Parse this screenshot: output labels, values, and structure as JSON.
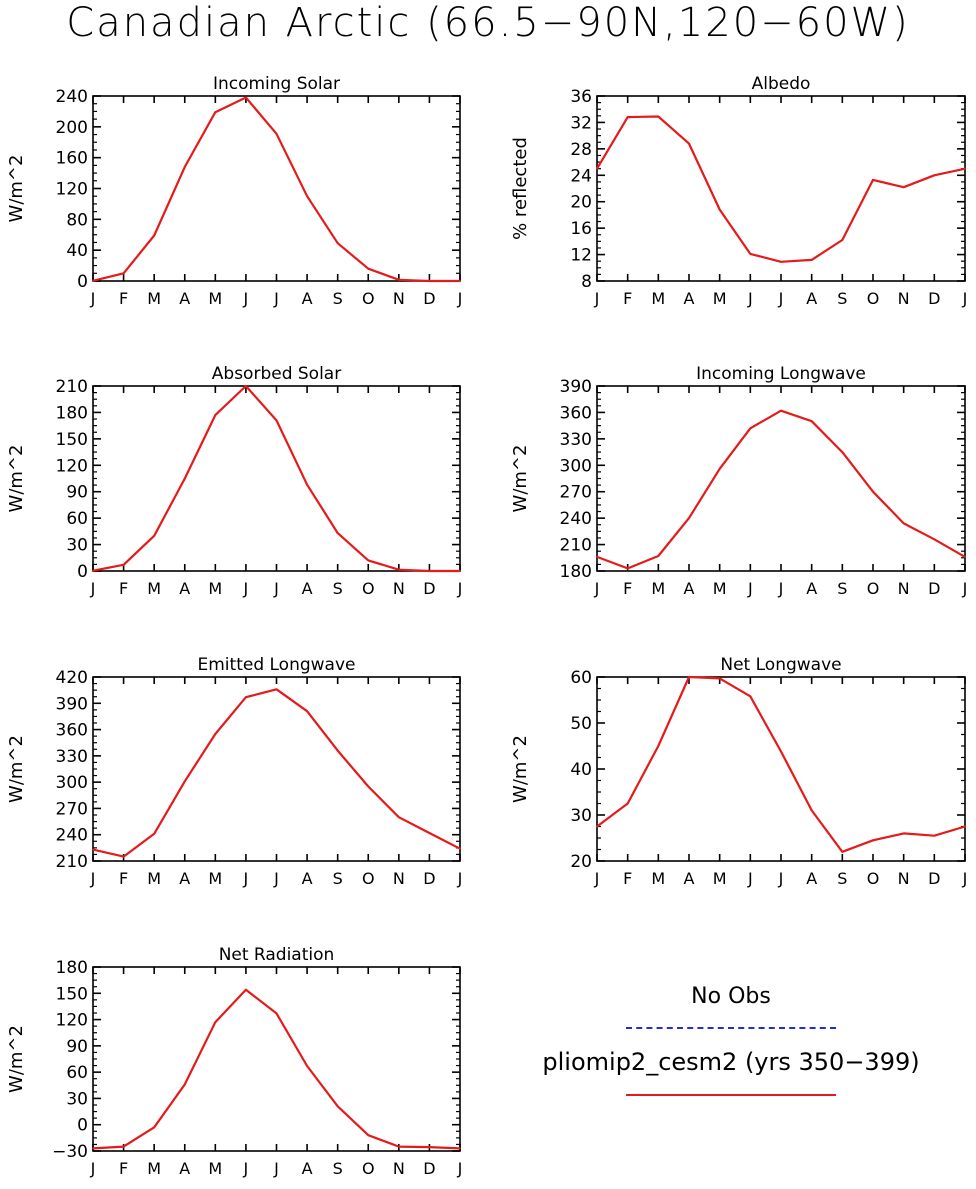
{
  "title": "Canadian Arctic (66.5−90N,120−60W)",
  "colors": {
    "model": "#e51a1a",
    "obs": "#1f2fd8",
    "axis": "#000000"
  },
  "months": [
    "J",
    "F",
    "M",
    "A",
    "M",
    "J",
    "J",
    "A",
    "S",
    "O",
    "N",
    "D",
    "J"
  ],
  "legend": {
    "obs_label": "No Obs",
    "model_label": "pliomip2_cesm2 (yrs 350−399)"
  },
  "chart_data": [
    {
      "type": "line",
      "title": "Incoming Solar",
      "ylabel": "W/m^2",
      "ylim": [
        0,
        240
      ],
      "yticks": [
        0,
        40,
        80,
        120,
        160,
        200,
        240
      ],
      "x": [
        "J",
        "F",
        "M",
        "A",
        "M",
        "J",
        "J",
        "A",
        "S",
        "O",
        "N",
        "D",
        "J"
      ],
      "series": [
        {
          "name": "pliomip2_cesm2 (yrs 350−399)",
          "values": [
            0.3,
            10,
            59,
            148,
            219,
            238,
            191,
            110,
            49,
            16,
            1.5,
            0,
            0
          ]
        }
      ]
    },
    {
      "type": "line",
      "title": "Albedo",
      "ylabel": "% reflected",
      "ylim": [
        8,
        36
      ],
      "yticks": [
        8,
        12,
        16,
        20,
        24,
        28,
        32,
        36
      ],
      "x": [
        "J",
        "F",
        "M",
        "A",
        "M",
        "J",
        "J",
        "A",
        "S",
        "O",
        "N",
        "D",
        "J"
      ],
      "series": [
        {
          "name": "pliomip2_cesm2 (yrs 350−399)",
          "values": [
            25,
            32.8,
            32.9,
            28.8,
            18.8,
            12.1,
            10.9,
            11.2,
            14.2,
            23.3,
            22.2,
            24,
            25
          ]
        }
      ]
    },
    {
      "type": "line",
      "title": "Absorbed Solar",
      "ylabel": "W/m^2",
      "ylim": [
        0,
        210
      ],
      "yticks": [
        0,
        30,
        60,
        90,
        120,
        150,
        180,
        210
      ],
      "x": [
        "J",
        "F",
        "M",
        "A",
        "M",
        "J",
        "J",
        "A",
        "S",
        "O",
        "N",
        "D",
        "J"
      ],
      "series": [
        {
          "name": "pliomip2_cesm2 (yrs 350−399)",
          "values": [
            0.3,
            7,
            40,
            105,
            177,
            210,
            171,
            98,
            43,
            12,
            1.5,
            0,
            0
          ]
        }
      ]
    },
    {
      "type": "line",
      "title": "Incoming Longwave",
      "ylabel": "W/m^2",
      "ylim": [
        180,
        390
      ],
      "yticks": [
        180,
        210,
        240,
        270,
        300,
        330,
        360,
        390
      ],
      "x": [
        "J",
        "F",
        "M",
        "A",
        "M",
        "J",
        "J",
        "A",
        "S",
        "O",
        "N",
        "D",
        "J"
      ],
      "series": [
        {
          "name": "pliomip2_cesm2 (yrs 350−399)",
          "values": [
            196,
            183,
            197,
            240,
            296,
            342,
            362,
            350,
            315,
            270,
            234,
            216,
            196
          ]
        }
      ]
    },
    {
      "type": "line",
      "title": "Emitted Longwave",
      "ylabel": "W/m^2",
      "ylim": [
        210,
        420
      ],
      "yticks": [
        210,
        240,
        270,
        300,
        330,
        360,
        390,
        420
      ],
      "x": [
        "J",
        "F",
        "M",
        "A",
        "M",
        "J",
        "J",
        "A",
        "S",
        "O",
        "N",
        "D",
        "J"
      ],
      "series": [
        {
          "name": "pliomip2_cesm2 (yrs 350−399)",
          "values": [
            223,
            215,
            241,
            301,
            355,
            397,
            406,
            381,
            336,
            295,
            260,
            242,
            224
          ]
        }
      ]
    },
    {
      "type": "line",
      "title": "Net Longwave",
      "ylabel": "W/m^2",
      "ylim": [
        20,
        60
      ],
      "yticks": [
        20,
        30,
        40,
        50,
        60
      ],
      "x": [
        "J",
        "F",
        "M",
        "A",
        "M",
        "J",
        "J",
        "A",
        "S",
        "O",
        "N",
        "D",
        "J"
      ],
      "series": [
        {
          "name": "pliomip2_cesm2 (yrs 350−399)",
          "values": [
            27.5,
            32.5,
            45,
            60,
            59.7,
            55.8,
            43.8,
            31,
            22,
            24.5,
            26,
            25.5,
            27.5
          ]
        }
      ]
    },
    {
      "type": "line",
      "title": "Net Radiation",
      "ylabel": "W/m^2",
      "ylim": [
        -30,
        180
      ],
      "yticks": [
        -30,
        0,
        30,
        60,
        90,
        120,
        150,
        180
      ],
      "x": [
        "J",
        "F",
        "M",
        "A",
        "M",
        "J",
        "J",
        "A",
        "S",
        "O",
        "N",
        "D",
        "J"
      ],
      "series": [
        {
          "name": "pliomip2_cesm2 (yrs 350−399)",
          "values": [
            -27,
            -25,
            -3,
            46,
            117,
            154,
            127,
            67,
            21,
            -12,
            -25,
            -25.5,
            -27
          ]
        }
      ]
    }
  ]
}
